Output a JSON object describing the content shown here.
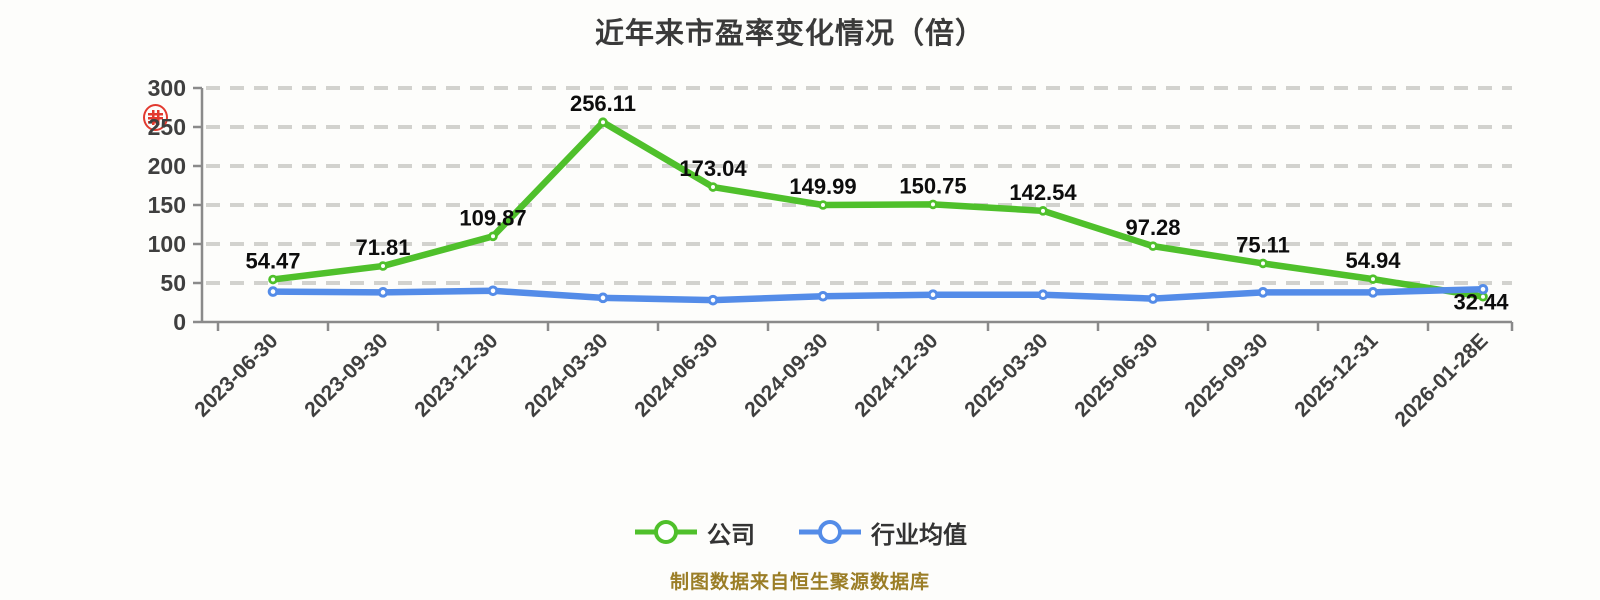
{
  "title": "近年来市盈率变化情况（倍）",
  "watermark": {
    "name": "red-seal-stamp",
    "color": "#e02a1e"
  },
  "legend": {
    "items": [
      {
        "label": "公司",
        "color": "#4fc02b"
      },
      {
        "label": "行业均值",
        "color": "#548ce8"
      }
    ]
  },
  "footer": {
    "text": "制图数据来自恒生聚源数据库",
    "color": "#9b7e27"
  },
  "chart_data": {
    "type": "line",
    "title": "近年来市盈率变化情况（倍）",
    "categories": [
      "2023-06-30",
      "2023-09-30",
      "2023-12-30",
      "2024-03-30",
      "2024-06-30",
      "2024-09-30",
      "2024-12-30",
      "2025-03-30",
      "2025-06-30",
      "2025-09-30",
      "2025-12-31",
      "2026-01-28E"
    ],
    "series": [
      {
        "name": "公司",
        "color": "#4fc02b",
        "values": [
          54.47,
          71.81,
          109.87,
          256.11,
          173.04,
          149.99,
          150.75,
          142.54,
          97.28,
          75.11,
          54.94,
          32.44
        ],
        "point_labels_shown": true
      },
      {
        "name": "行业均值",
        "color": "#548ce8",
        "values": [
          39,
          38,
          40,
          31,
          28,
          33,
          35,
          35,
          30,
          38,
          38,
          42
        ],
        "point_labels_shown": false,
        "values_estimated_from_pixels": true
      }
    ],
    "ylabel": "",
    "xlabel": "",
    "ylim": [
      0,
      300
    ],
    "yticks": [
      0,
      50,
      100,
      150,
      200,
      250,
      300
    ],
    "grid": "horizontal-dashed",
    "legend_position": "bottom",
    "colors": {
      "grid_line": "#d2d2ce",
      "axis_line": "#8a8a8a",
      "tick_label": "#3f3f3f",
      "data_label": "#0d0d0d",
      "marker_fill": "#ffffff"
    }
  }
}
